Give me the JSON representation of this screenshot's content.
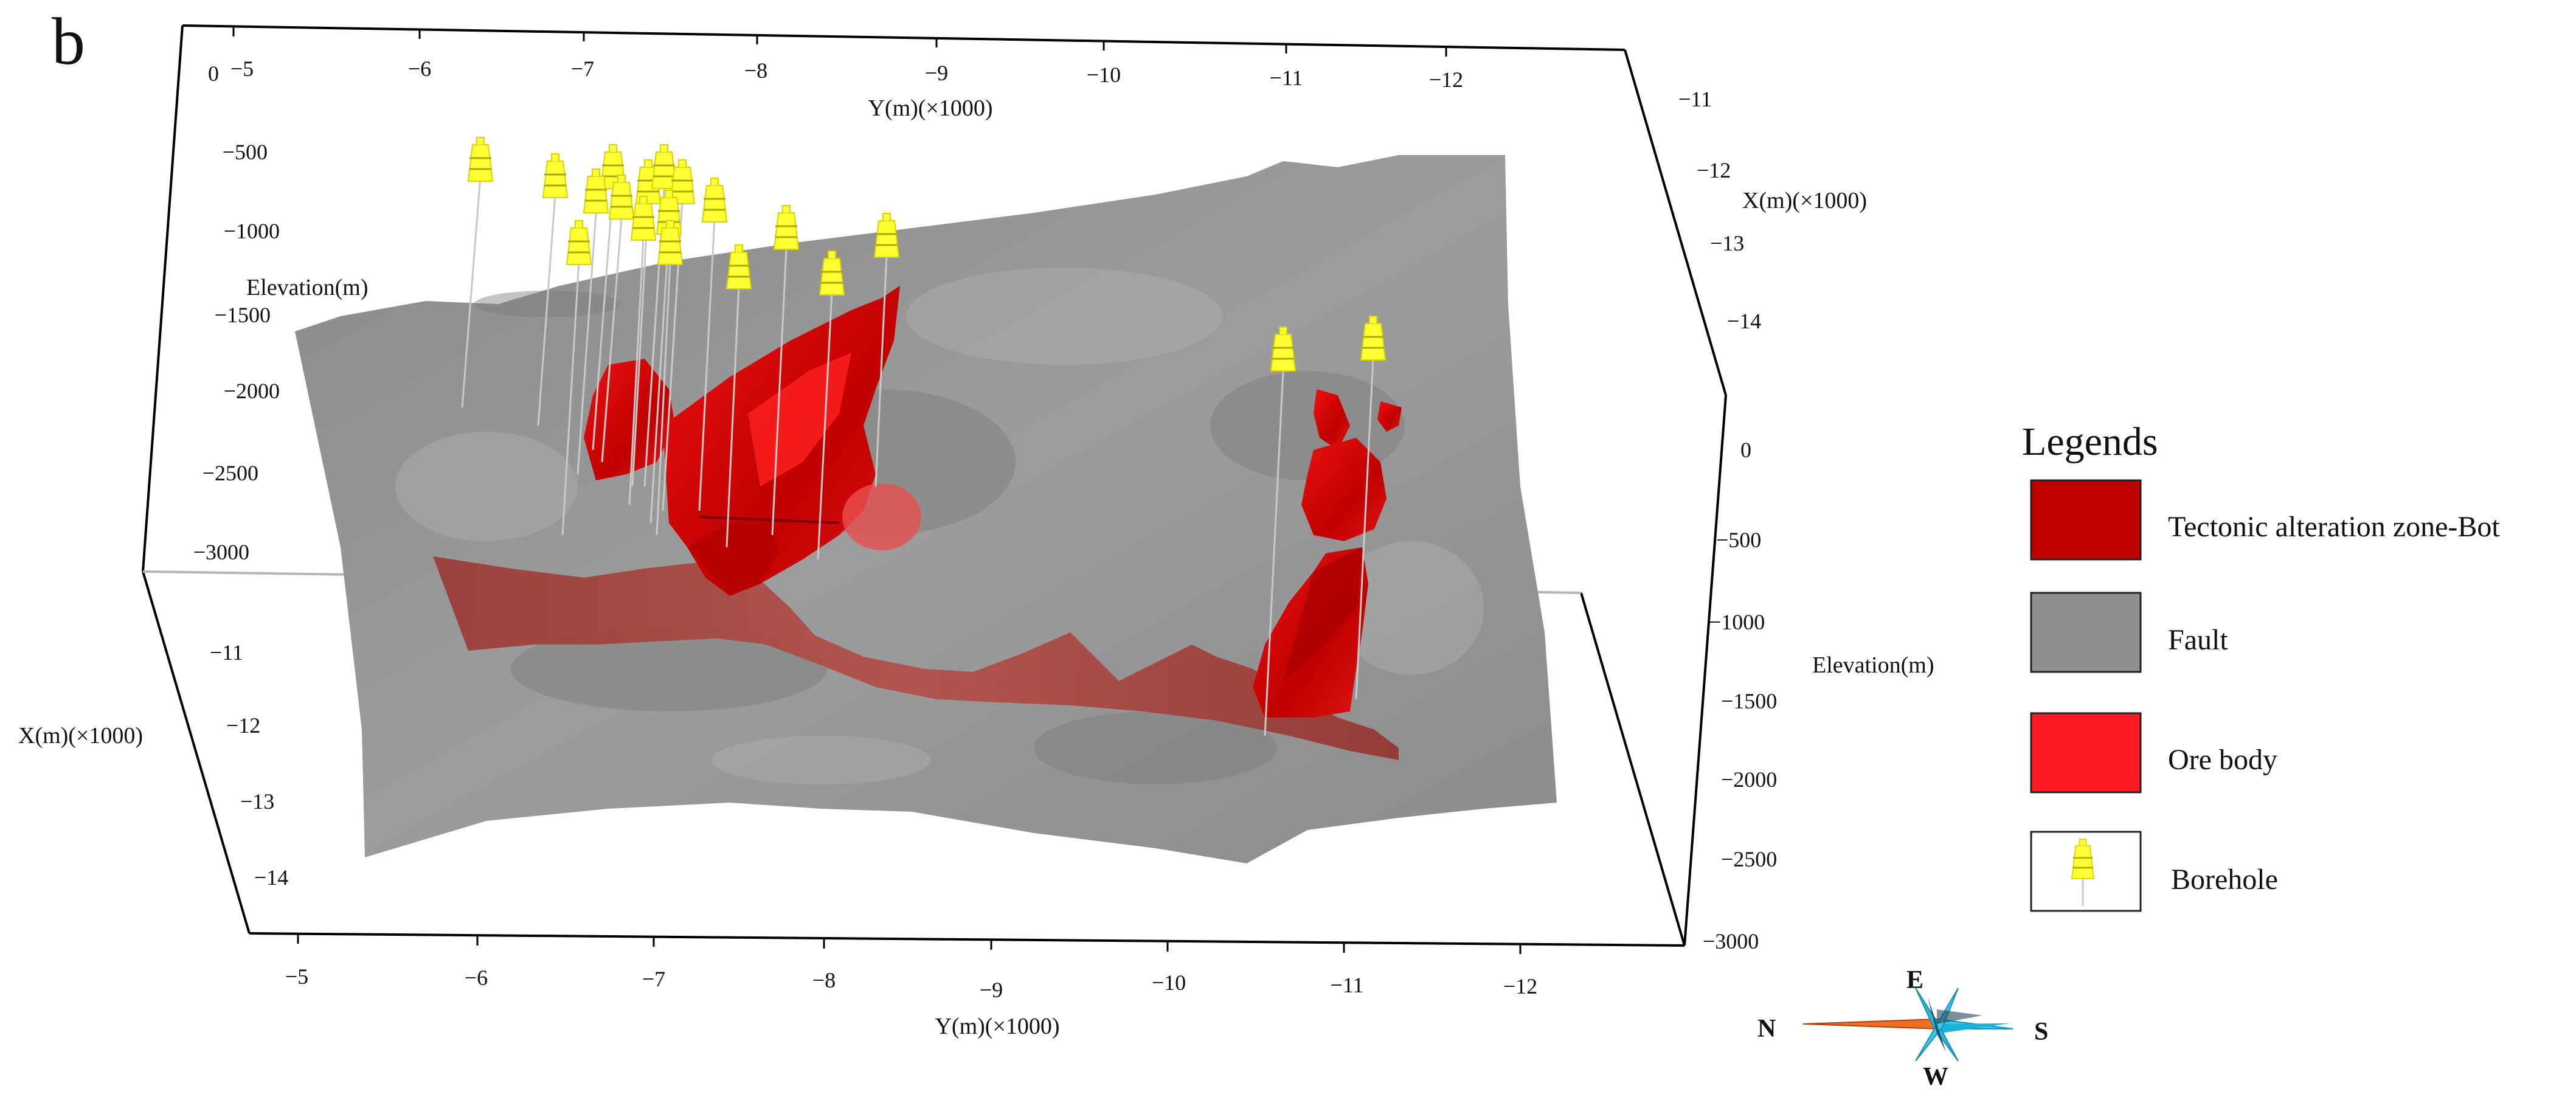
{
  "panel_label": "b",
  "axes": {
    "top_y_title": "Y(m)(×1000)",
    "bottom_y_title": "Y(m)(×1000)",
    "top_right_x_title": "X(m)(×1000)",
    "left_x_title": "X(m)(×1000)",
    "left_elev_title": "Elevation(m)",
    "right_elev_title": "Elevation(m)",
    "top_y_ticks": [
      "−5",
      "−6",
      "−7",
      "−8",
      "−9",
      "−10",
      "−11",
      "−12"
    ],
    "bottom_y_ticks": [
      "−5",
      "−6",
      "−7",
      "−8",
      "−9",
      "−10",
      "−11",
      "−12"
    ],
    "top_right_x_ticks": [
      "−11",
      "−12",
      "−13",
      "−14"
    ],
    "left_x_ticks": [
      "−11",
      "−12",
      "−13",
      "−14"
    ],
    "left_elev_ticks": [
      "0",
      "−500",
      "−1000",
      "−1500",
      "−2000",
      "−2500",
      "−3000"
    ],
    "right_elev_ticks": [
      "0",
      "−500",
      "−1000",
      "−1500",
      "−2000",
      "−2500",
      "−3000"
    ]
  },
  "legend": {
    "title": "Legends",
    "items": [
      {
        "label": "Tectonic alteration zone-Bot",
        "color": "#c10000",
        "symbol": "swatch"
      },
      {
        "label": "Fault",
        "color": "#8f8f8f",
        "symbol": "swatch"
      },
      {
        "label": "Ore body",
        "color": "#ff1a24",
        "symbol": "swatch"
      },
      {
        "label": "Borehole",
        "color": "#ffff00",
        "symbol": "borehole"
      }
    ]
  },
  "compass": {
    "north": "N",
    "south": "S",
    "east": "E",
    "west": "W"
  },
  "colors": {
    "fault": "#8f8f8f",
    "ore_body": "#e01010",
    "alteration_zone": "#a0403a",
    "borehole_marker": "#ffff33",
    "borehole_line": "#c8c8c8",
    "compass_orange": "#f07020",
    "compass_cyan": "#33ccee"
  }
}
